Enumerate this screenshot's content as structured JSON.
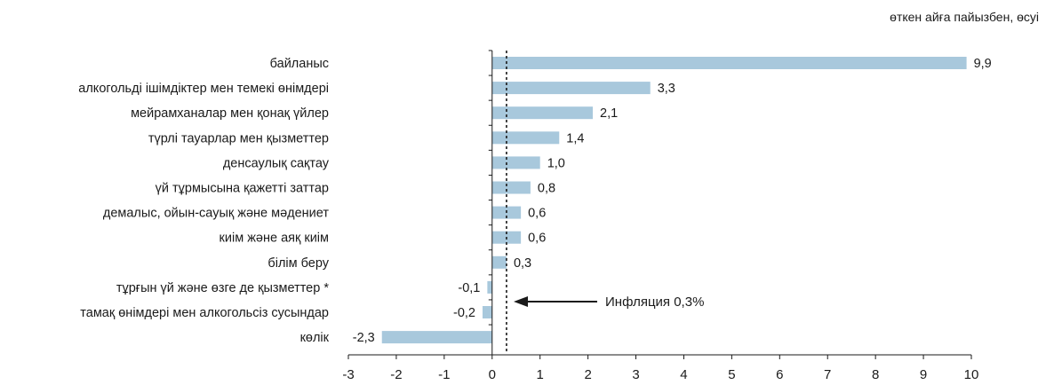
{
  "chart_data": {
    "type": "bar",
    "orientation": "horizontal",
    "unit_label": "өткен айға пайызбен, өсуі",
    "categories": [
      "байланыс",
      "алкогольді ішімдіктер мен темекі өнімдері",
      "мейрамханалар мен қонақ үйлер",
      "түрлі тауарлар мен қызметтер",
      "денсаулық сақтау",
      "үй тұрмысына қажетті заттар",
      "демалыс, ойын-сауық және мәдениет",
      "киім және аяқ киім",
      "білім беру",
      "тұрғын үй және өзге де қызметтер  *",
      "тамақ өнімдері мен алкогольсіз сусындар",
      "көлік"
    ],
    "values": [
      9.9,
      3.3,
      2.1,
      1.4,
      1.0,
      0.8,
      0.6,
      0.6,
      0.3,
      -0.1,
      -0.2,
      -2.3
    ],
    "value_labels": [
      "9,9",
      "3,3",
      "2,1",
      "1,4",
      "1,0",
      "0,8",
      "0,6",
      "0,6",
      "0,3",
      "-0,1",
      "-0,2",
      "-2,3"
    ],
    "xlim": [
      -3,
      10
    ],
    "x_ticks": [
      -3,
      -2,
      -1,
      0,
      1,
      2,
      3,
      4,
      5,
      6,
      7,
      8,
      9,
      10
    ],
    "bar_color": "#a8c8dc",
    "reference_line": {
      "value": 0.3,
      "label": "Инфляция 0,3%"
    },
    "grid": false,
    "legend": "none"
  }
}
